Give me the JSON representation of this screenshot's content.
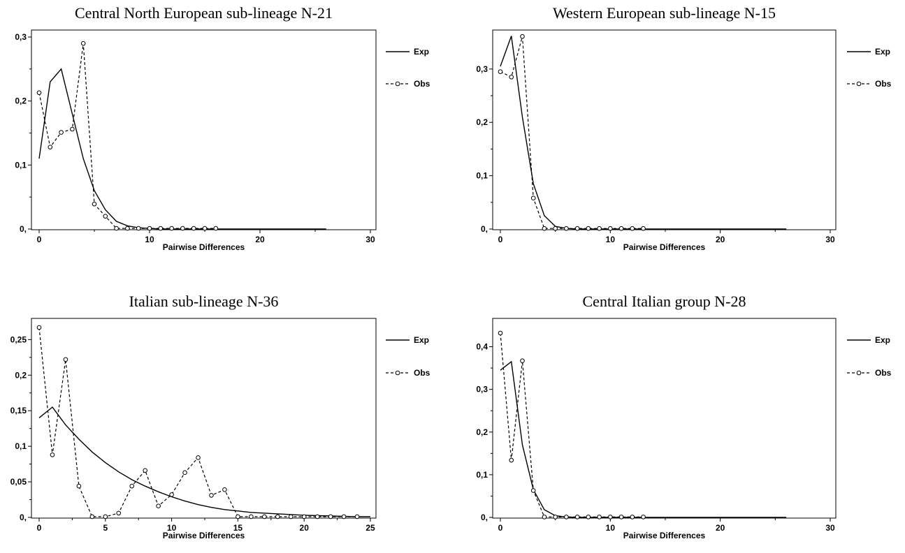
{
  "chart_data": [
    {
      "type": "line",
      "title": "Central North European sub-lineage N-21",
      "xlabel": "Pairwise Differences",
      "ylabel": "",
      "xlim": [
        0,
        30
      ],
      "ylim": [
        0,
        0.3
      ],
      "xticks": [
        0,
        10,
        20,
        30
      ],
      "xtick_labels": [
        "0",
        "10",
        "20",
        "30"
      ],
      "yticks": [
        0,
        0.1,
        0.2,
        0.3
      ],
      "ytick_labels": [
        "0,",
        "0,1",
        "0,2",
        "0,3"
      ],
      "legend_position": "right",
      "series": [
        {
          "name": "Exp",
          "style": "solid",
          "x": [
            0,
            1,
            2,
            3,
            4,
            5,
            6,
            7,
            8,
            9,
            10,
            11,
            12,
            13,
            14,
            15,
            16,
            17,
            18,
            19,
            20,
            21,
            22,
            23,
            24,
            25,
            26
          ],
          "y": [
            0.11,
            0.23,
            0.25,
            0.18,
            0.11,
            0.06,
            0.03,
            0.012,
            0.005,
            0.002,
            0.001,
            0,
            0,
            0,
            0,
            0,
            0,
            0,
            0,
            0,
            0,
            0,
            0,
            0,
            0,
            0,
            0
          ]
        },
        {
          "name": "Obs",
          "style": "dashed-circle",
          "x": [
            0,
            1,
            2,
            3,
            4,
            5,
            6,
            7,
            8,
            9,
            10,
            11,
            12,
            13,
            14,
            15,
            16
          ],
          "y": [
            0.213,
            0.128,
            0.151,
            0.156,
            0.29,
            0.039,
            0.02,
            0.001,
            0.001,
            0.001,
            0.001,
            0.001,
            0.001,
            0.001,
            0.001,
            0.001,
            0.001
          ]
        }
      ]
    },
    {
      "type": "line",
      "title": "Western European sub-lineage N-15",
      "xlabel": "Pairwise Differences",
      "ylabel": "",
      "xlim": [
        0,
        30
      ],
      "ylim": [
        0,
        0.36
      ],
      "xticks": [
        0,
        10,
        20,
        30
      ],
      "xtick_labels": [
        "0",
        "10",
        "20",
        "30"
      ],
      "yticks": [
        0,
        0.1,
        0.2,
        0.3
      ],
      "ytick_labels": [
        "0,",
        "0,1",
        "0,2",
        "0,3"
      ],
      "legend_position": "right",
      "series": [
        {
          "name": "Exp",
          "style": "solid",
          "x": [
            0,
            1,
            2,
            3,
            4,
            5,
            6,
            7,
            8,
            9,
            10,
            11,
            12,
            13,
            14,
            15,
            16,
            17,
            18,
            19,
            20,
            21,
            22,
            23,
            24,
            25,
            26
          ],
          "y": [
            0.305,
            0.362,
            0.21,
            0.085,
            0.025,
            0.005,
            0.001,
            0,
            0,
            0,
            0,
            0,
            0,
            0,
            0,
            0,
            0,
            0,
            0,
            0,
            0,
            0,
            0,
            0,
            0,
            0,
            0
          ]
        },
        {
          "name": "Obs",
          "style": "dashed-circle",
          "x": [
            0,
            1,
            2,
            3,
            4,
            5,
            6,
            7,
            8,
            9,
            10,
            11,
            12,
            13
          ],
          "y": [
            0.295,
            0.285,
            0.361,
            0.058,
            0.001,
            0.001,
            0.001,
            0.001,
            0.001,
            0.001,
            0.001,
            0.001,
            0.001,
            0.001
          ]
        }
      ]
    },
    {
      "type": "line",
      "title": "Italian sub-lineage N-36",
      "xlabel": "Pairwise Differences",
      "ylabel": "",
      "xlim": [
        0,
        25
      ],
      "ylim": [
        0,
        0.27
      ],
      "xticks": [
        0,
        5,
        10,
        15,
        20,
        25
      ],
      "xtick_labels": [
        "0",
        "5",
        "10",
        "15",
        "20",
        "25"
      ],
      "yticks": [
        0,
        0.05,
        0.1,
        0.15,
        0.2,
        0.25
      ],
      "ytick_labels": [
        "0,",
        "0,05",
        "0,1",
        "0,15",
        "0,2",
        "0,25"
      ],
      "legend_position": "right",
      "series": [
        {
          "name": "Exp",
          "style": "solid",
          "x": [
            0,
            1,
            2,
            3,
            4,
            5,
            6,
            7,
            8,
            9,
            10,
            11,
            12,
            13,
            14,
            15,
            16,
            17,
            18,
            19,
            20,
            21,
            22,
            23,
            24,
            25
          ],
          "y": [
            0.14,
            0.155,
            0.13,
            0.11,
            0.092,
            0.077,
            0.064,
            0.053,
            0.044,
            0.036,
            0.029,
            0.023,
            0.018,
            0.014,
            0.011,
            0.009,
            0.007,
            0.006,
            0.005,
            0.004,
            0.003,
            0.0025,
            0.002,
            0.0015,
            0.001,
            0.001
          ]
        },
        {
          "name": "Obs",
          "style": "dashed-circle",
          "x": [
            0,
            1,
            2,
            3,
            4,
            5,
            6,
            7,
            8,
            9,
            10,
            11,
            12,
            13,
            14,
            15,
            16,
            17,
            18,
            19,
            20,
            21,
            22,
            23,
            24
          ],
          "y": [
            0.267,
            0.088,
            0.222,
            0.044,
            0.001,
            0.001,
            0.006,
            0.044,
            0.066,
            0.016,
            0.032,
            0.063,
            0.084,
            0.031,
            0.039,
            0.001,
            0.001,
            0.001,
            0.001,
            0.001,
            0.001,
            0.001,
            0.001,
            0.001,
            0.001
          ]
        }
      ]
    },
    {
      "type": "line",
      "title": "Central Italian group N-28",
      "xlabel": "Pairwise Differences",
      "ylabel": "",
      "xlim": [
        0,
        30
      ],
      "ylim": [
        0,
        0.45
      ],
      "xticks": [
        0,
        10,
        20,
        30
      ],
      "xtick_labels": [
        "0",
        "10",
        "20",
        "30"
      ],
      "yticks": [
        0,
        0.1,
        0.2,
        0.3,
        0.4
      ],
      "ytick_labels": [
        "0,",
        "0,1",
        "0,2",
        "0,3",
        "0,4"
      ],
      "legend_position": "right",
      "series": [
        {
          "name": "Exp",
          "style": "solid",
          "x": [
            0,
            1,
            2,
            3,
            4,
            5,
            6,
            7,
            8,
            9,
            10,
            11,
            12,
            13,
            14,
            15,
            16,
            17,
            18,
            19,
            20,
            21,
            22,
            23,
            24,
            25,
            26
          ],
          "y": [
            0.345,
            0.365,
            0.17,
            0.065,
            0.018,
            0.004,
            0.001,
            0,
            0,
            0,
            0,
            0,
            0,
            0,
            0,
            0,
            0,
            0,
            0,
            0,
            0,
            0,
            0,
            0,
            0,
            0,
            0
          ]
        },
        {
          "name": "Obs",
          "style": "dashed-circle",
          "x": [
            0,
            1,
            2,
            3,
            4,
            5,
            6,
            7,
            8,
            9,
            10,
            11,
            12,
            13
          ],
          "y": [
            0.432,
            0.134,
            0.367,
            0.063,
            0.001,
            0.001,
            0.001,
            0.001,
            0.001,
            0.001,
            0.001,
            0.001,
            0.001,
            0.001
          ]
        }
      ]
    }
  ]
}
